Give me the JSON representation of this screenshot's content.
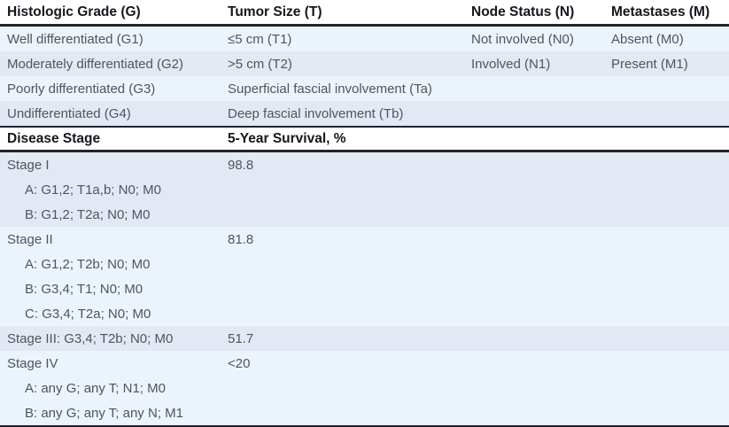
{
  "table": {
    "tnm": {
      "headers": {
        "grade": "Histologic Grade (G)",
        "size": "Tumor Size (T)",
        "node": "Node Status (N)",
        "mets": "Metastases (M)"
      },
      "rows": [
        {
          "grade": "Well differentiated (G1)",
          "size": "≤5 cm (T1)",
          "node": "Not involved (N0)",
          "mets": "Absent (M0)"
        },
        {
          "grade": "Moderately differentiated (G2)",
          "size": ">5 cm (T2)",
          "node": "Involved (N1)",
          "mets": "Present (M1)"
        },
        {
          "grade": "Poorly differentiated (G3)",
          "size": "Superficial fascial involvement (Ta)",
          "node": "",
          "mets": ""
        },
        {
          "grade": "Undifferentiated (G4)",
          "size": "Deep fascial involvement (Tb)",
          "node": "",
          "mets": ""
        }
      ]
    },
    "stage": {
      "headers": {
        "stage": "Disease Stage",
        "survival": "5-Year Survival, %"
      },
      "blocks": [
        {
          "lines": [
            {
              "label": "Stage I",
              "survival": "98.8"
            },
            {
              "label": "A: G1,2; T1a,b; N0; M0"
            },
            {
              "label": "B: G1,2; T2a; N0; M0"
            }
          ]
        },
        {
          "lines": [
            {
              "label": "Stage II",
              "survival": "81.8"
            },
            {
              "label": "A: G1,2; T2b; N0; M0"
            },
            {
              "label": "B: G3,4; T1; N0; M0"
            },
            {
              "label": "C: G3,4; T2a; N0; M0"
            }
          ]
        },
        {
          "lines": [
            {
              "label": "Stage III: G3,4; T2b; N0; M0",
              "survival": "51.7"
            }
          ]
        },
        {
          "lines": [
            {
              "label": "Stage IV",
              "survival": "<20"
            },
            {
              "label": "A: any G; any T; N1; M0"
            },
            {
              "label": "B: any G; any T; any N; M1"
            }
          ]
        }
      ]
    }
  },
  "colors": {
    "row_shade_light": "#ecf4fb",
    "row_shade_dark": "#e3e9f4",
    "rule_dark": "#20232e",
    "header_text": "#15171e",
    "body_text": "#50545c"
  }
}
